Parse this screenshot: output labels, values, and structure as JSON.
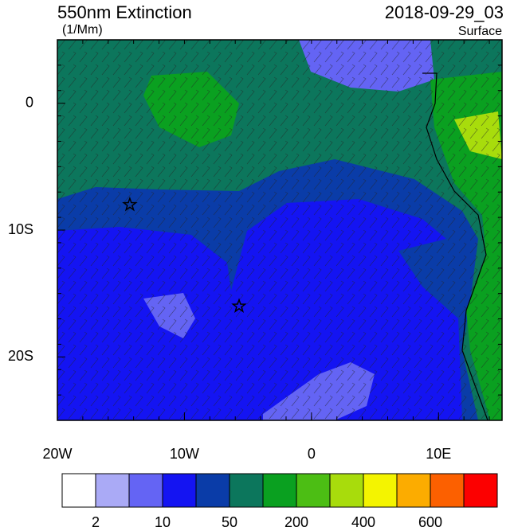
{
  "title": "550nm Extinction",
  "units": "(1/Mm)",
  "time": "2018-09-29_03",
  "level": "Surface",
  "map": {
    "lon_range": [
      -20,
      15
    ],
    "lat_range": [
      -25,
      5
    ],
    "lon_ticks": [
      {
        "value": -20,
        "label": "20W"
      },
      {
        "value": -10,
        "label": "10W"
      },
      0,
      {
        "value": 10,
        "label": "10E"
      }
    ],
    "lat_ticks": [
      0,
      {
        "value": -10,
        "label": "10S"
      },
      {
        "value": -20,
        "label": "20S"
      }
    ],
    "markers": [
      {
        "lon": -14.3,
        "lat": -8
      },
      {
        "lon": -5.7,
        "lat": -16
      }
    ]
  },
  "colorbar": {
    "colors": [
      "#ffffff",
      "#aaaaf6",
      "#6464f4",
      "#1414f2",
      "#0a3ca8",
      "#0c765c",
      "#0aa020",
      "#4cbe14",
      "#a8dc0c",
      "#f4f400",
      "#fcac00",
      "#fc6000",
      "#fc0000"
    ],
    "labels": [
      2,
      10,
      50,
      200,
      400,
      600
    ]
  }
}
